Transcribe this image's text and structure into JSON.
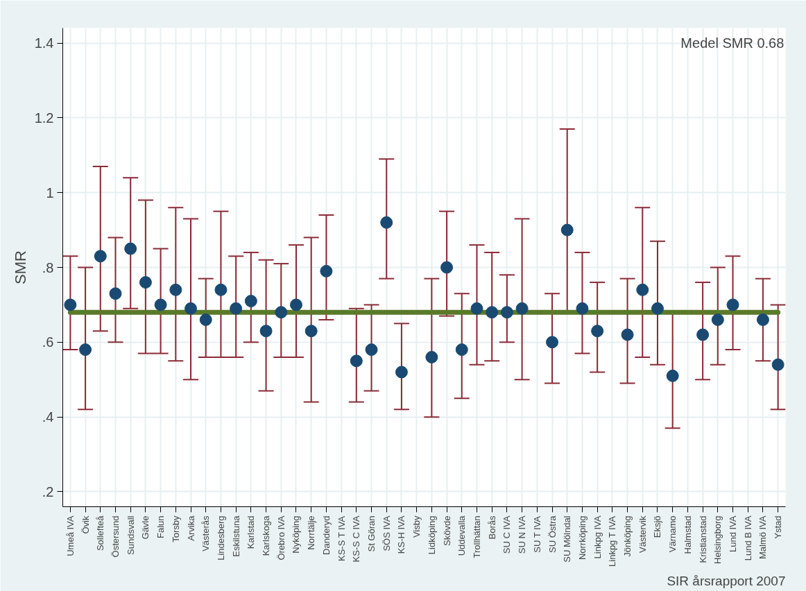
{
  "chart_data": {
    "type": "scatter",
    "ylabel": "SMR",
    "categories": [
      "Umeå IVA",
      "Övik",
      "Sollefteå",
      "Östersund",
      "Sundsvall",
      "Gävle",
      "Falun",
      "Torsby",
      "Arvika",
      "Västerås",
      "Lindesberg",
      "Eskilstuna",
      "Karlstad",
      "Karlskoga",
      "Örebro IVA",
      "Nyköping",
      "Norrtälje",
      "Danderyd",
      "KS-S T IVA",
      "KS-S C IVA",
      "St Göran",
      "SÖS IVA",
      "KS-H IVA",
      "Visby",
      "Lidköping",
      "Skövde",
      "Uddevalla",
      "Trollhättan",
      "Borås",
      "SU C IVA",
      "SU N IVA",
      "SU T IVA",
      "SU Östra",
      "SU Mölndal",
      "Norrköping",
      "Linkpg IVA",
      "Linkpg T IVA",
      "Jönköping",
      "Västervik",
      "Eksjö",
      "Värnamo",
      "Halmstad",
      "Kristianstad",
      "Helsingborg",
      "Lund IVA",
      "Lund B IVA",
      "Malmö IVA",
      "Ystad"
    ],
    "series": [
      {
        "color": "#1a4a72",
        "values": [
          0.7,
          0.58,
          0.83,
          0.73,
          0.85,
          0.76,
          0.7,
          0.74,
          0.69,
          0.66,
          0.74,
          0.69,
          0.71,
          0.63,
          0.68,
          0.7,
          0.63,
          0.79,
          null,
          0.55,
          0.58,
          0.92,
          0.52,
          null,
          0.56,
          0.8,
          0.58,
          0.69,
          0.68,
          0.68,
          0.69,
          null,
          0.6,
          0.9,
          0.69,
          0.63,
          null,
          0.62,
          0.74,
          0.69,
          0.51,
          null,
          0.62,
          0.66,
          0.7,
          null,
          0.66,
          0.54
        ],
        "errors": [
          [
            0.58,
            0.83
          ],
          [
            0.42,
            0.8
          ],
          [
            0.63,
            1.07
          ],
          [
            0.6,
            0.88
          ],
          [
            0.69,
            1.04
          ],
          [
            0.57,
            0.98
          ],
          [
            0.57,
            0.85
          ],
          [
            0.55,
            0.96
          ],
          [
            0.5,
            0.93
          ],
          [
            0.56,
            0.77
          ],
          [
            0.56,
            0.95
          ],
          [
            0.56,
            0.83
          ],
          [
            0.6,
            0.84
          ],
          [
            0.47,
            0.82
          ],
          [
            0.56,
            0.81
          ],
          [
            0.56,
            0.86
          ],
          [
            0.44,
            0.88
          ],
          [
            0.66,
            0.94
          ],
          null,
          [
            0.44,
            0.69
          ],
          [
            0.47,
            0.7
          ],
          [
            0.77,
            1.09
          ],
          [
            0.42,
            0.65
          ],
          null,
          [
            0.4,
            0.77
          ],
          [
            0.67,
            0.95
          ],
          [
            0.45,
            0.73
          ],
          [
            0.54,
            0.86
          ],
          [
            0.55,
            0.84
          ],
          [
            0.6,
            0.78
          ],
          [
            0.5,
            0.93
          ],
          null,
          [
            0.49,
            0.73
          ],
          [
            0.68,
            1.17
          ],
          [
            0.57,
            0.84
          ],
          [
            0.52,
            0.76
          ],
          null,
          [
            0.49,
            0.77
          ],
          [
            0.56,
            0.96
          ],
          [
            0.54,
            0.87
          ],
          [
            0.37,
            0.68
          ],
          null,
          [
            0.5,
            0.76
          ],
          [
            0.54,
            0.8
          ],
          [
            0.58,
            0.83
          ],
          null,
          [
            0.55,
            0.77
          ],
          [
            0.42,
            0.7
          ]
        ]
      }
    ],
    "marker": "circle",
    "ylim": [
      0.16,
      1.44
    ],
    "yticks": [
      {
        "value": 0.2,
        "label": ".2"
      },
      {
        "value": 0.4,
        "label": ".4"
      },
      {
        "value": 0.6,
        "label": ".6"
      },
      {
        "value": 0.8,
        "label": ".8"
      },
      1,
      {
        "value": 1.2,
        "label": "1.2"
      },
      {
        "value": 1.4,
        "label": "1.4"
      }
    ],
    "ref_lines": [
      {
        "axis": "y",
        "value": 0.68,
        "color": "#5a7a2a"
      }
    ],
    "grid": true,
    "annotations": [
      "Medel SMR 0.68",
      "SIR årsrapport 2007"
    ]
  }
}
